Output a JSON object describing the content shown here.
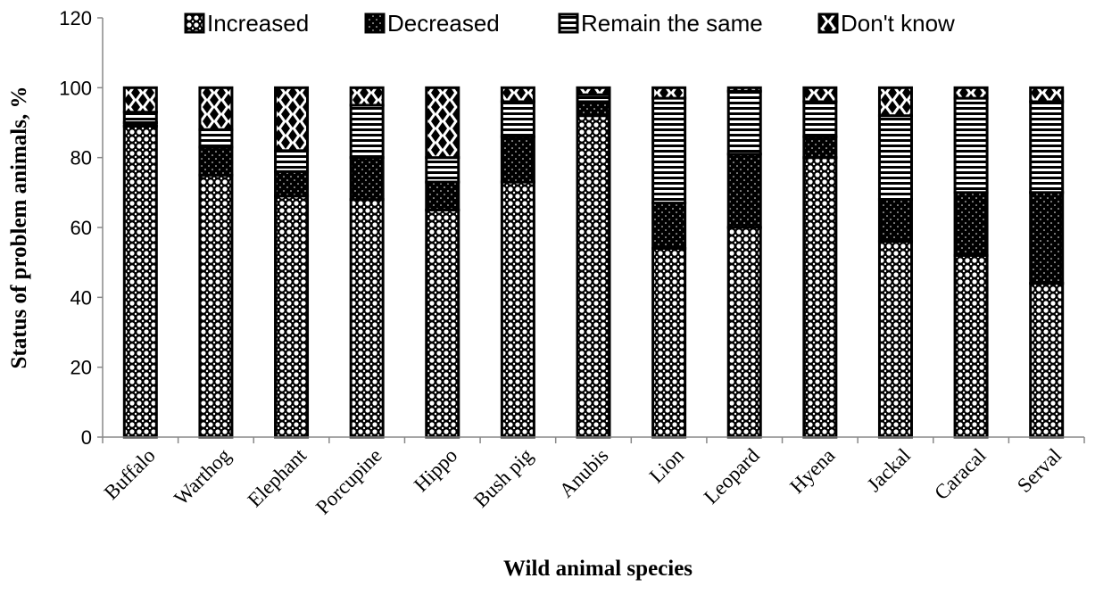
{
  "chart_data": {
    "type": "bar",
    "stacked": true,
    "title": "",
    "xlabel": "Wild animal species",
    "ylabel": "Status of problem animals, %",
    "ylim": [
      0,
      120
    ],
    "yticks": [
      0,
      20,
      40,
      60,
      80,
      100,
      120
    ],
    "legend_position": "top",
    "grid": false,
    "categories": [
      "Buffalo",
      "Warthog",
      "Elephant",
      "Porcupine",
      "Hippo",
      "Bush pig",
      "Anubis",
      "Lion",
      "Leopard",
      "Hyena",
      "Jackal",
      "Caracal",
      "Serval"
    ],
    "series": [
      {
        "name": "Increased",
        "pattern": "circles",
        "values": [
          89,
          75,
          69,
          68,
          65,
          73,
          92,
          54,
          60,
          80,
          56,
          52,
          44
        ]
      },
      {
        "name": "Decreased",
        "pattern": "dots",
        "values": [
          1,
          8,
          7,
          12,
          8,
          13,
          4,
          13,
          21,
          6,
          12,
          18,
          26
        ]
      },
      {
        "name": "Remain the same",
        "pattern": "horizontal-lines",
        "values": [
          3,
          5,
          6,
          15,
          7,
          10,
          2,
          30,
          18,
          10,
          24,
          27,
          26
        ]
      },
      {
        "name": "Don't know",
        "pattern": "diamonds",
        "values": [
          7,
          12,
          18,
          5,
          20,
          4,
          2,
          3,
          1,
          4,
          8,
          3,
          4
        ]
      }
    ]
  }
}
